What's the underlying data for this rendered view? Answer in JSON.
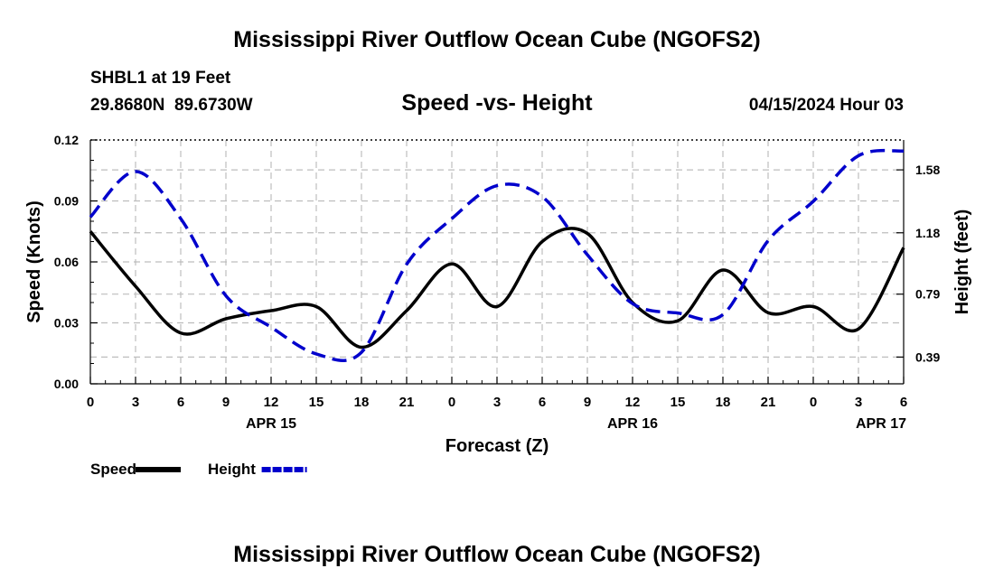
{
  "page": {
    "title_top": "Mississippi River Outflow Ocean Cube (NGOFS2)",
    "title_bottom": "Mississippi River Outflow Ocean Cube (NGOFS2)",
    "station": "SHBL1 at 19 Feet",
    "coords": "29.8680N  89.6730W",
    "subtitle": "Speed -vs- Height",
    "datetime": "04/15/2024 Hour 03"
  },
  "chart_data": {
    "type": "line",
    "title": "Speed -vs- Height",
    "xlabel": "Forecast (Z)",
    "ylabel": "Speed (Knots)",
    "y2label": "Height (feet)",
    "xlim": [
      0,
      54
    ],
    "ylim": [
      0,
      0.12
    ],
    "y2lim": [
      0.22,
      1.77
    ],
    "x_ticks": [
      0,
      3,
      6,
      9,
      12,
      15,
      18,
      21,
      24,
      27,
      30,
      33,
      36,
      39,
      42,
      45,
      48,
      51,
      54
    ],
    "x_tick_labels": [
      "0",
      "3",
      "6",
      "9",
      "12",
      "15",
      "18",
      "21",
      "0",
      "3",
      "6",
      "9",
      "12",
      "15",
      "18",
      "21",
      "0",
      "3",
      "6"
    ],
    "y_ticks": [
      0,
      0.03,
      0.06,
      0.09,
      0.12
    ],
    "y_tick_labels": [
      "0.00",
      "0.03",
      "0.06",
      "0.09",
      "0.12"
    ],
    "y2_ticks": [
      0.39,
      0.79,
      1.18,
      1.58
    ],
    "y2_tick_labels": [
      "0.39",
      "0.79",
      "1.18",
      "1.58"
    ],
    "date_labels": [
      {
        "x": 12,
        "label": "APR 15"
      },
      {
        "x": 36,
        "label": "APR 16"
      },
      {
        "x": 52.5,
        "label": "APR 17"
      }
    ],
    "grid": true,
    "series": [
      {
        "name": "Speed",
        "axis": "left",
        "color": "#000000",
        "style": "solid",
        "x": [
          0,
          3,
          6,
          9,
          12,
          15,
          18,
          21,
          24,
          27,
          30,
          33,
          36,
          39,
          42,
          45,
          48,
          51,
          54
        ],
        "values": [
          0.075,
          0.048,
          0.025,
          0.032,
          0.036,
          0.038,
          0.018,
          0.036,
          0.059,
          0.038,
          0.07,
          0.074,
          0.04,
          0.031,
          0.056,
          0.035,
          0.038,
          0.027,
          0.067
        ]
      },
      {
        "name": "Height",
        "axis": "right",
        "color": "#0000cc",
        "style": "dashed",
        "x": [
          0,
          3,
          6,
          9,
          12,
          15,
          18,
          21,
          24,
          27,
          30,
          33,
          36,
          39,
          42,
          45,
          48,
          51,
          54
        ],
        "values": [
          1.28,
          1.57,
          1.27,
          0.78,
          0.58,
          0.41,
          0.42,
          0.98,
          1.27,
          1.48,
          1.41,
          1.04,
          0.73,
          0.67,
          0.66,
          1.13,
          1.38,
          1.67,
          1.7
        ]
      }
    ],
    "legend": [
      {
        "label": "Speed",
        "color": "#000000",
        "style": "solid"
      },
      {
        "label": "Height",
        "color": "#0000cc",
        "style": "dashed"
      }
    ]
  }
}
